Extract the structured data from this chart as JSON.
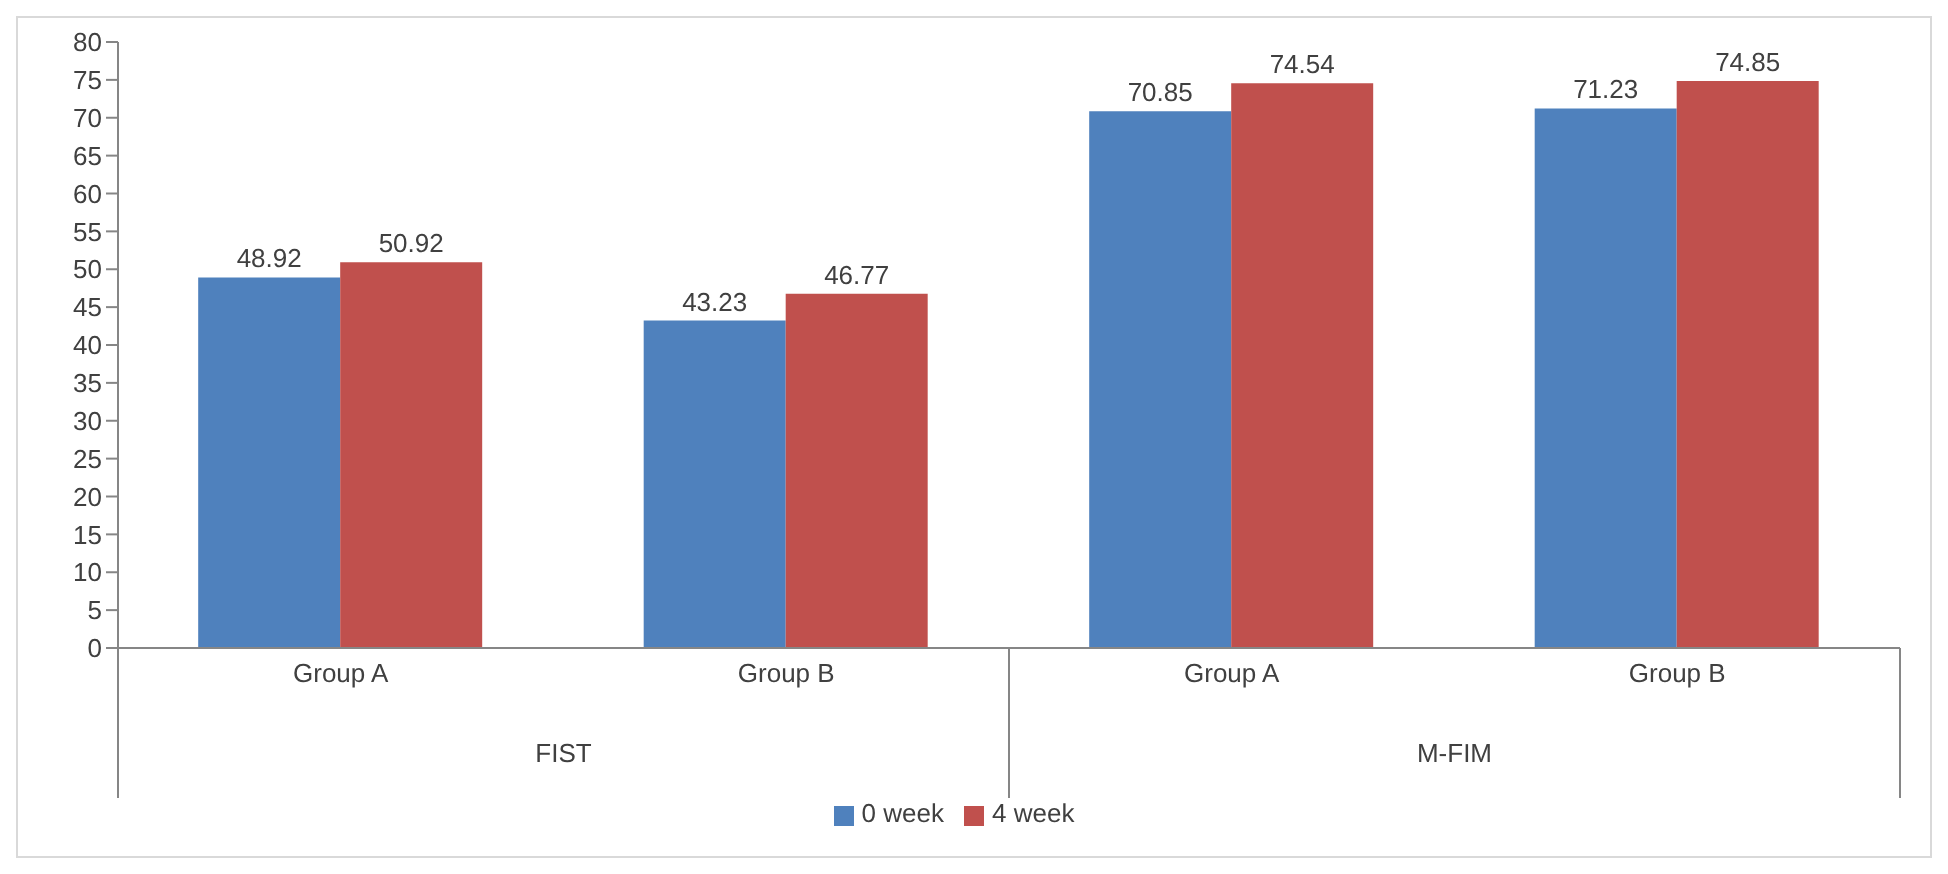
{
  "chart_data": {
    "type": "bar",
    "categories": [
      "Group A",
      "Group B",
      "Group A",
      "Group B"
    ],
    "series": [
      {
        "name": "0 week",
        "color": "#4f81bd",
        "values": [
          48.92,
          43.23,
          70.85,
          71.23
        ]
      },
      {
        "name": "4 week",
        "color": "#c0504d",
        "values": [
          50.92,
          46.77,
          74.54,
          74.85
        ]
      }
    ],
    "ylim": [
      0,
      80
    ],
    "yticks": [
      0,
      5,
      10,
      15,
      20,
      25,
      30,
      35,
      40,
      45,
      50,
      55,
      60,
      65,
      70,
      75,
      80
    ],
    "annotations": [
      "FIST",
      "M-FIM"
    ],
    "data_labels": true,
    "grid": false,
    "legend": "bottom"
  }
}
